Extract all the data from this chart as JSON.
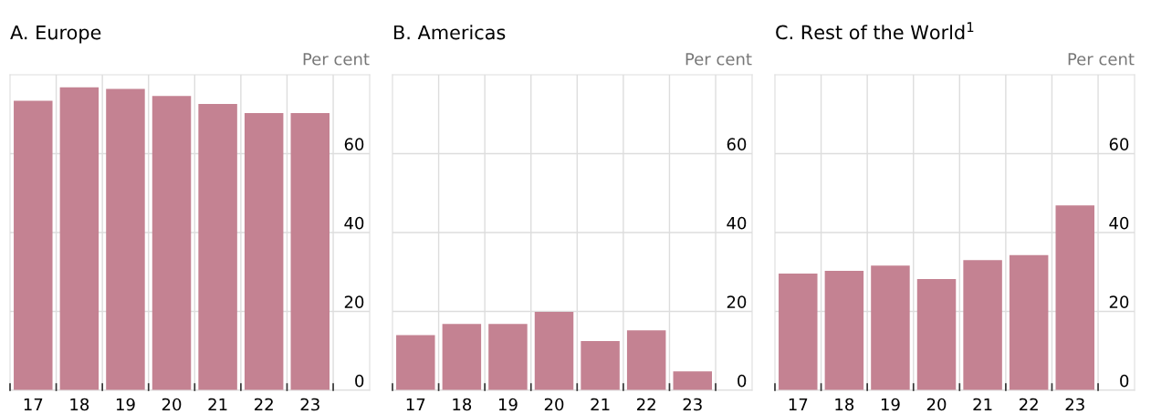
{
  "chart_data": [
    {
      "type": "bar",
      "title": "A. Europe",
      "ylabel": "Per cent",
      "categories": [
        "17",
        "18",
        "19",
        "20",
        "21",
        "22",
        "23"
      ],
      "values": [
        73.4,
        76.8,
        76.4,
        74.6,
        72.6,
        70.3,
        70.3
      ],
      "color": "#c48292",
      "ylim": [
        0,
        80
      ],
      "yticks": [
        0,
        20,
        40,
        60
      ],
      "grid": true
    },
    {
      "type": "bar",
      "title": "B. Americas",
      "ylabel": "Per cent",
      "categories": [
        "17",
        "18",
        "19",
        "20",
        "21",
        "22",
        "23"
      ],
      "values": [
        14.0,
        16.8,
        16.8,
        19.9,
        12.5,
        15.2,
        4.8
      ],
      "color": "#c48292",
      "ylim": [
        0,
        80
      ],
      "yticks": [
        0,
        20,
        40,
        60
      ],
      "grid": true
    },
    {
      "type": "bar",
      "title": "C. Rest of the World$^{1}$",
      "ylabel": "Per cent",
      "categories": [
        "17",
        "18",
        "19",
        "20",
        "21",
        "22",
        "23"
      ],
      "values": [
        29.6,
        30.3,
        31.6,
        28.2,
        33.0,
        34.3,
        46.9
      ],
      "color": "#c48292",
      "ylim": [
        0,
        80
      ],
      "yticks": [
        0,
        20,
        40,
        60
      ],
      "grid": true
    }
  ]
}
